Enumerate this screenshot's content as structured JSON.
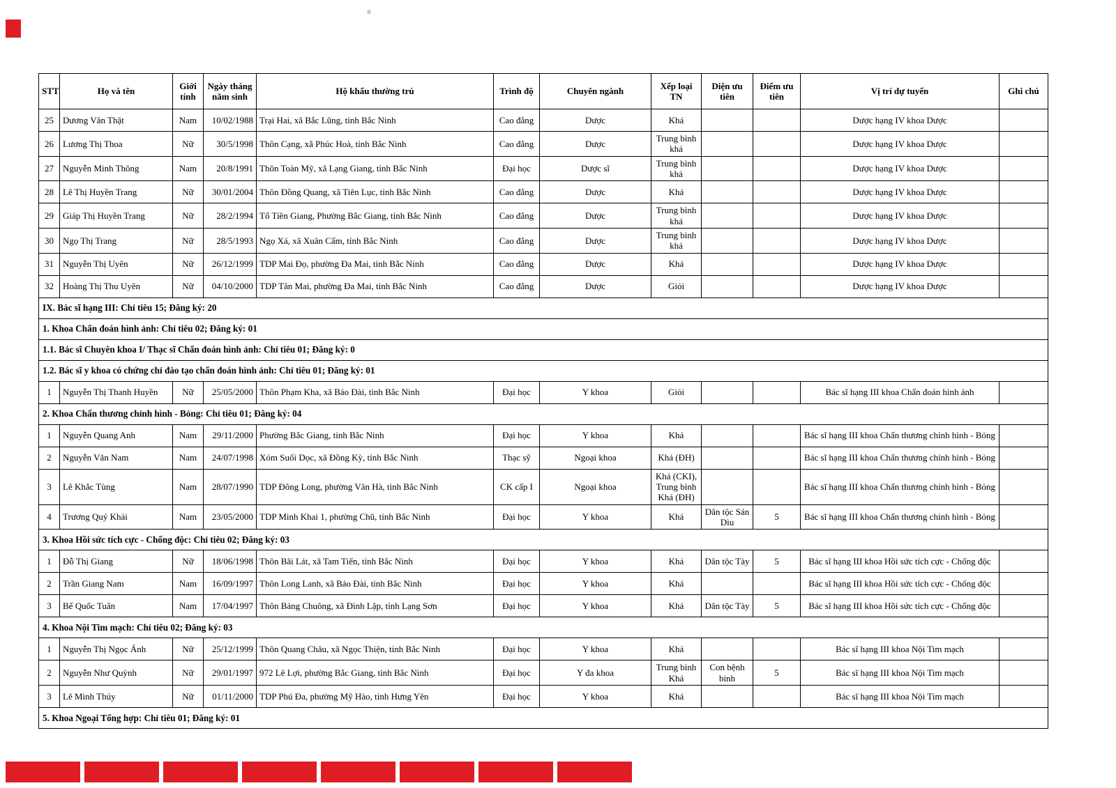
{
  "marks": {
    "redaction_color": "#df1d24",
    "bottom_segment_count": 8
  },
  "table": {
    "columns": [
      {
        "key": "stt",
        "label": "STT"
      },
      {
        "key": "name",
        "label": "Họ và tên"
      },
      {
        "key": "gender",
        "label": "Giới tính"
      },
      {
        "key": "dob",
        "label": "Ngày tháng năm sinh"
      },
      {
        "key": "address",
        "label": "Hộ khẩu thường trú"
      },
      {
        "key": "degree",
        "label": "Trình độ"
      },
      {
        "key": "major",
        "label": "Chuyên ngành"
      },
      {
        "key": "grade",
        "label": "Xếp loại TN"
      },
      {
        "key": "priority",
        "label": "Diện ưu tiên"
      },
      {
        "key": "points",
        "label": "Điểm ưu tiên"
      },
      {
        "key": "position",
        "label": "Vị trí dự tuyển"
      },
      {
        "key": "note",
        "label": "Ghi chú"
      }
    ],
    "rows": [
      {
        "type": "data",
        "stt": "25",
        "name": "Dương Văn Thật",
        "gender": "Nam",
        "dob": "10/02/1988",
        "address": "Trại Hai, xã Bắc Lũng, tỉnh Bắc Ninh",
        "degree": "Cao đẳng",
        "major": "Dược",
        "grade": "Khá",
        "priority": "",
        "points": "",
        "position": "Dược hạng IV khoa Dược",
        "note": ""
      },
      {
        "type": "data",
        "stt": "26",
        "name": "Lương Thị Thoa",
        "gender": "Nữ",
        "dob": "30/5/1998",
        "address": "Thôn Cạng, xã Phúc Hoà, tỉnh Bắc Ninh",
        "degree": "Cao đẳng",
        "major": "Dược",
        "grade": "Trung bình khá",
        "priority": "",
        "points": "",
        "position": "Dược hạng IV khoa Dược",
        "note": ""
      },
      {
        "type": "data",
        "stt": "27",
        "name": "Nguyễn Minh Thông",
        "gender": "Nam",
        "dob": "20/8/1991",
        "address": "Thôn Toàn Mỹ, xã Lạng Giang, tỉnh Bắc Ninh",
        "degree": "Đại học",
        "major": "Dược sĩ",
        "grade": "Trung bình khá",
        "priority": "",
        "points": "",
        "position": "Dược hạng IV khoa Dược",
        "note": ""
      },
      {
        "type": "data",
        "stt": "28",
        "name": "Lê Thị Huyền Trang",
        "gender": "Nữ",
        "dob": "30/01/2004",
        "address": "Thôn Đồng Quang, xã Tiên Lục, tỉnh Bắc Ninh",
        "degree": "Cao đẳng",
        "major": "Dược",
        "grade": "Khá",
        "priority": "",
        "points": "",
        "position": "Dược hạng IV khoa Dược",
        "note": ""
      },
      {
        "type": "data",
        "stt": "29",
        "name": "Giáp Thị Huyền Trang",
        "gender": "Nữ",
        "dob": "28/2/1994",
        "address": "Tổ Tiền Giang, Phường Bắc Giang, tỉnh Bắc Ninh",
        "degree": "Cao đẳng",
        "major": "Dược",
        "grade": "Trung bình khá",
        "priority": "",
        "points": "",
        "position": "Dược hạng IV khoa Dược",
        "note": ""
      },
      {
        "type": "data",
        "stt": "30",
        "name": "Ngọ Thị Trang",
        "gender": "Nữ",
        "dob": "28/5/1993",
        "address": "Ngọ Xá, xã Xuân Cẩm, tỉnh Bắc Ninh",
        "degree": "Cao đẳng",
        "major": "Dược",
        "grade": "Trung bình khá",
        "priority": "",
        "points": "",
        "position": "Dược hạng IV khoa Dược",
        "note": ""
      },
      {
        "type": "data",
        "stt": "31",
        "name": "Nguyễn Thị Uyên",
        "gender": "Nữ",
        "dob": "26/12/1999",
        "address": "TDP Mai Đọ, phường Đa Mai, tỉnh Bắc Ninh",
        "degree": "Cao đẳng",
        "major": "Dược",
        "grade": "Khá",
        "priority": "",
        "points": "",
        "position": "Dược hạng IV khoa Dược",
        "note": ""
      },
      {
        "type": "data",
        "stt": "32",
        "name": "Hoàng Thị Thu Uyên",
        "gender": "Nữ",
        "dob": "04/10/2000",
        "address": "TDP Tân Mai, phường Đa Mai, tỉnh Bắc Ninh",
        "degree": "Cao đẳng",
        "major": "Dược",
        "grade": "Giỏi",
        "priority": "",
        "points": "",
        "position": "Dược hạng IV khoa Dược",
        "note": ""
      },
      {
        "type": "section",
        "text": "IX. Bác sĩ hạng III: Chỉ tiêu 15; Đăng ký: 20"
      },
      {
        "type": "section",
        "text": "1. Khoa Chẩn đoán hình ảnh: Chỉ tiêu 02; Đăng ký: 01"
      },
      {
        "type": "section",
        "text": "1.1. Bác sĩ Chuyên khoa I/ Thạc sĩ Chẩn đoán hình ảnh: Chỉ tiêu 01; Đăng ký: 0"
      },
      {
        "type": "section",
        "text": "1.2. Bác sĩ y khoa có chứng chỉ đào tạo chẩn đoán hình ảnh: Chỉ tiêu 01; Đăng ký: 01"
      },
      {
        "type": "data",
        "stt": "1",
        "name": "Nguyễn Thị Thanh Huyền",
        "gender": "Nữ",
        "dob": "25/05/2000",
        "address": "Thôn Phạm Kha, xã Bảo Đài, tỉnh Bắc Ninh",
        "degree": "Đại học",
        "major": "Y khoa",
        "grade": "Giỏi",
        "priority": "",
        "points": "",
        "position": "Bác sĩ hạng III khoa Chẩn đoán hình ảnh",
        "note": ""
      },
      {
        "type": "section",
        "text": "2. Khoa Chấn thương chỉnh hình - Bỏng: Chỉ tiêu 01; Đăng ký: 04"
      },
      {
        "type": "data",
        "stt": "1",
        "name": "Nguyễn Quang Anh",
        "gender": "Nam",
        "dob": "29/11/2000",
        "address": "Phường Bắc Giang, tỉnh Bắc Ninh",
        "degree": "Đại học",
        "major": "Y khoa",
        "grade": "Khá",
        "priority": "",
        "points": "",
        "position": "Bác sĩ hạng III khoa Chấn thương chỉnh hình - Bỏng",
        "note": ""
      },
      {
        "type": "data",
        "stt": "2",
        "name": "Nguyễn Văn Nam",
        "gender": "Nam",
        "dob": "24/07/1998",
        "address": "Xóm Suối Dọc, xã Đồng Kỳ, tỉnh Bắc Ninh",
        "degree": "Thạc sỹ",
        "major": "Ngoại khoa",
        "grade": "Khá (ĐH)",
        "priority": "",
        "points": "",
        "position": "Bác sĩ hạng III khoa Chấn thương chỉnh hình - Bỏng",
        "note": ""
      },
      {
        "type": "data",
        "stt": "3",
        "name": "Lê Khắc Tùng",
        "gender": "Nam",
        "dob": "28/07/1990",
        "address": "TDP Đông Long, phường Vân Hà, tỉnh Bắc Ninh",
        "degree": "CK cấp I",
        "major": "Ngoại khoa",
        "grade": "Khá (CKI), Trung bình Khá (ĐH)",
        "priority": "",
        "points": "",
        "position": "Bác sĩ hạng III khoa Chấn thương chỉnh hình - Bỏng",
        "note": ""
      },
      {
        "type": "data",
        "stt": "4",
        "name": "Trương Quý Khải",
        "gender": "Nam",
        "dob": "23/05/2000",
        "address": "TDP Minh Khai 1, phường Chũ, tỉnh Bắc Ninh",
        "degree": "Đại học",
        "major": "Y khoa",
        "grade": "Khá",
        "priority": "Dân tộc Sán Dìu",
        "points": "5",
        "position": "Bác sĩ hạng III khoa Chấn thương chỉnh hình - Bỏng",
        "note": ""
      },
      {
        "type": "section",
        "text": "3. Khoa Hồi sức tích cực - Chống độc: Chỉ tiêu 02; Đăng ký: 03"
      },
      {
        "type": "data",
        "stt": "1",
        "name": "Đỗ Thị Giang",
        "gender": "Nữ",
        "dob": "18/06/1998",
        "address": "Thôn Bãi Lát, xã Tam Tiến, tỉnh Bắc Ninh",
        "degree": "Đại học",
        "major": "Y khoa",
        "grade": "Khá",
        "priority": "Dân tộc Tày",
        "points": "5",
        "position": "Bác sĩ hạng III khoa Hồi sức tích cực - Chống độc",
        "note": ""
      },
      {
        "type": "data",
        "stt": "2",
        "name": "Trần Giang Nam",
        "gender": "Nam",
        "dob": "16/09/1997",
        "address": "Thôn Long Lanh, xã Bảo Đài, tỉnh Bắc Ninh",
        "degree": "Đại học",
        "major": "Y khoa",
        "grade": "Khá",
        "priority": "",
        "points": "",
        "position": "Bác sĩ hạng III khoa Hồi sức tích cực - Chống độc",
        "note": ""
      },
      {
        "type": "data",
        "stt": "3",
        "name": "Bế Quốc Tuân",
        "gender": "Nam",
        "dob": "17/04/1997",
        "address": "Thôn Bảng Chuông, xã Đình Lập, tỉnh Lạng Sơn",
        "degree": "Đại học",
        "major": "Y khoa",
        "grade": "Khá",
        "priority": "Dân tộc Tày",
        "points": "5",
        "position": "Bác sĩ hạng III khoa Hồi sức tích cực - Chống độc",
        "note": ""
      },
      {
        "type": "section",
        "text": "4. Khoa Nội Tim mạch: Chỉ tiêu 02; Đăng ký: 03"
      },
      {
        "type": "data",
        "stt": "1",
        "name": "Nguyễn Thị Ngọc Ánh",
        "gender": "Nữ",
        "dob": "25/12/1999",
        "address": "Thôn Quang Châu, xã Ngọc Thiện, tỉnh Bắc Ninh",
        "degree": "Đại học",
        "major": "Y khoa",
        "grade": "Khá",
        "priority": "",
        "points": "",
        "position": "Bác sĩ hạng III khoa Nội Tim mạch",
        "note": ""
      },
      {
        "type": "data",
        "stt": "2",
        "name": "Nguyễn Như Quỳnh",
        "gender": "Nữ",
        "dob": "29/01/1997",
        "address": "972 Lê Lợi, phường Bắc Giang, tỉnh Bắc Ninh",
        "degree": "Đại học",
        "major": "Y đa khoa",
        "grade": "Trung bình Khá",
        "priority": "Con bệnh binh",
        "points": "5",
        "position": "Bác sĩ hạng III khoa Nội Tim mạch",
        "note": ""
      },
      {
        "type": "data",
        "stt": "3",
        "name": "Lê Minh Thúy",
        "gender": "Nữ",
        "dob": "01/11/2000",
        "address": "TDP Phú Đa, phường Mỹ Hào, tỉnh Hưng Yên",
        "degree": "Đại học",
        "major": "Y khoa",
        "grade": "Khá",
        "priority": "",
        "points": "",
        "position": "Bác sĩ hạng III khoa Nội Tim mạch",
        "note": ""
      },
      {
        "type": "section",
        "text": "5. Khoa Ngoại Tổng hợp: Chỉ tiêu 01; Đăng ký: 01"
      }
    ]
  }
}
